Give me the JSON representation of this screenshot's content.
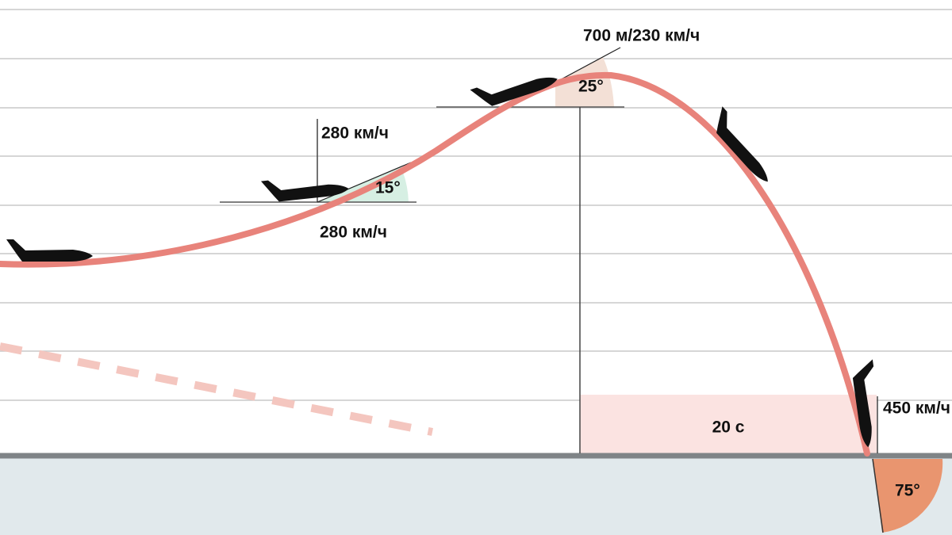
{
  "annotations": {
    "peak_label": "700 м/230 км/ч",
    "peak_angle": "25°",
    "climb_speed_top": "280 км/ч",
    "climb_speed_bottom": "280 км/ч",
    "climb_angle": "15°",
    "fall_time": "20 с",
    "impact_speed": "450 км/ч",
    "impact_angle": "75°"
  }
}
